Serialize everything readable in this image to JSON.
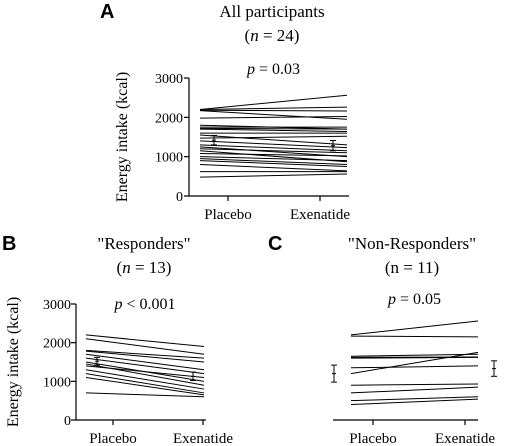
{
  "chart_data": [
    {
      "type": "line",
      "panel_letter": "A",
      "title": "All participants",
      "subtitle_parts": [
        "(",
        "n",
        " = 24)"
      ],
      "annotation_parts": [
        "p",
        " = 0.03"
      ],
      "ylabel": "Energy intake (kcal)",
      "categories": [
        "Placebo",
        "Exenatide"
      ],
      "ylim": [
        0,
        3000
      ],
      "yticks": [
        "0",
        "1000",
        "2000",
        "3000"
      ],
      "lines": [
        [
          2200,
          2560
        ],
        [
          2200,
          2260
        ],
        [
          2180,
          2160
        ],
        [
          2170,
          1950
        ],
        [
          1980,
          2020
        ],
        [
          1800,
          1700
        ],
        [
          1750,
          1750
        ],
        [
          1720,
          1700
        ],
        [
          1700,
          1640
        ],
        [
          1600,
          1600
        ],
        [
          1550,
          1300
        ],
        [
          1470,
          1520
        ],
        [
          1400,
          1230
        ],
        [
          1300,
          1150
        ],
        [
          1250,
          1000
        ],
        [
          1200,
          1100
        ],
        [
          1150,
          870
        ],
        [
          1080,
          1020
        ],
        [
          1000,
          900
        ],
        [
          950,
          800
        ],
        [
          900,
          750
        ],
        [
          800,
          640
        ],
        [
          620,
          620
        ],
        [
          480,
          560
        ]
      ],
      "means": [
        {
          "mean": 1420,
          "err": 120
        },
        {
          "mean": 1280,
          "err": 130
        }
      ]
    },
    {
      "type": "line",
      "panel_letter": "B",
      "title": "\"Responders\"",
      "subtitle_parts": [
        "(",
        "n",
        " = 13)"
      ],
      "annotation_parts": [
        "p",
        " < 0.001"
      ],
      "ylabel": "Energy intake (kcal)",
      "categories": [
        "Placebo",
        "Exenatide"
      ],
      "ylim": [
        0,
        3000
      ],
      "yticks": [
        "0",
        "1000",
        "2000",
        "3000"
      ],
      "lines": [
        [
          2200,
          1900
        ],
        [
          2100,
          1700
        ],
        [
          1800,
          1600
        ],
        [
          1780,
          1500
        ],
        [
          1700,
          1300
        ],
        [
          1600,
          1200
        ],
        [
          1500,
          1000
        ],
        [
          1450,
          900
        ],
        [
          1400,
          1100
        ],
        [
          1300,
          800
        ],
        [
          1200,
          700
        ],
        [
          1100,
          650
        ],
        [
          700,
          600
        ]
      ],
      "means": [
        {
          "mean": 1520,
          "err": 100
        },
        {
          "mean": 1130,
          "err": 110
        }
      ]
    },
    {
      "type": "line",
      "panel_letter": "C",
      "title": "\"Non-Responders\"",
      "subtitle_parts": [
        "(n = 11)"
      ],
      "annotation_parts": [
        "p",
        " = 0.05"
      ],
      "ylabel": "",
      "categories": [
        "Placebo",
        "Exenatide"
      ],
      "ylim": [
        0,
        3000
      ],
      "yticks": [],
      "lines": [
        [
          2200,
          2560
        ],
        [
          2170,
          2150
        ],
        [
          1650,
          1700
        ],
        [
          1620,
          1630
        ],
        [
          1600,
          1620
        ],
        [
          1350,
          1400
        ],
        [
          1200,
          1750
        ],
        [
          900,
          930
        ],
        [
          700,
          850
        ],
        [
          500,
          600
        ],
        [
          400,
          540
        ]
      ],
      "means": [
        {
          "mean": 1200,
          "err": 220
        },
        {
          "mean": 1330,
          "err": 200
        }
      ]
    }
  ]
}
